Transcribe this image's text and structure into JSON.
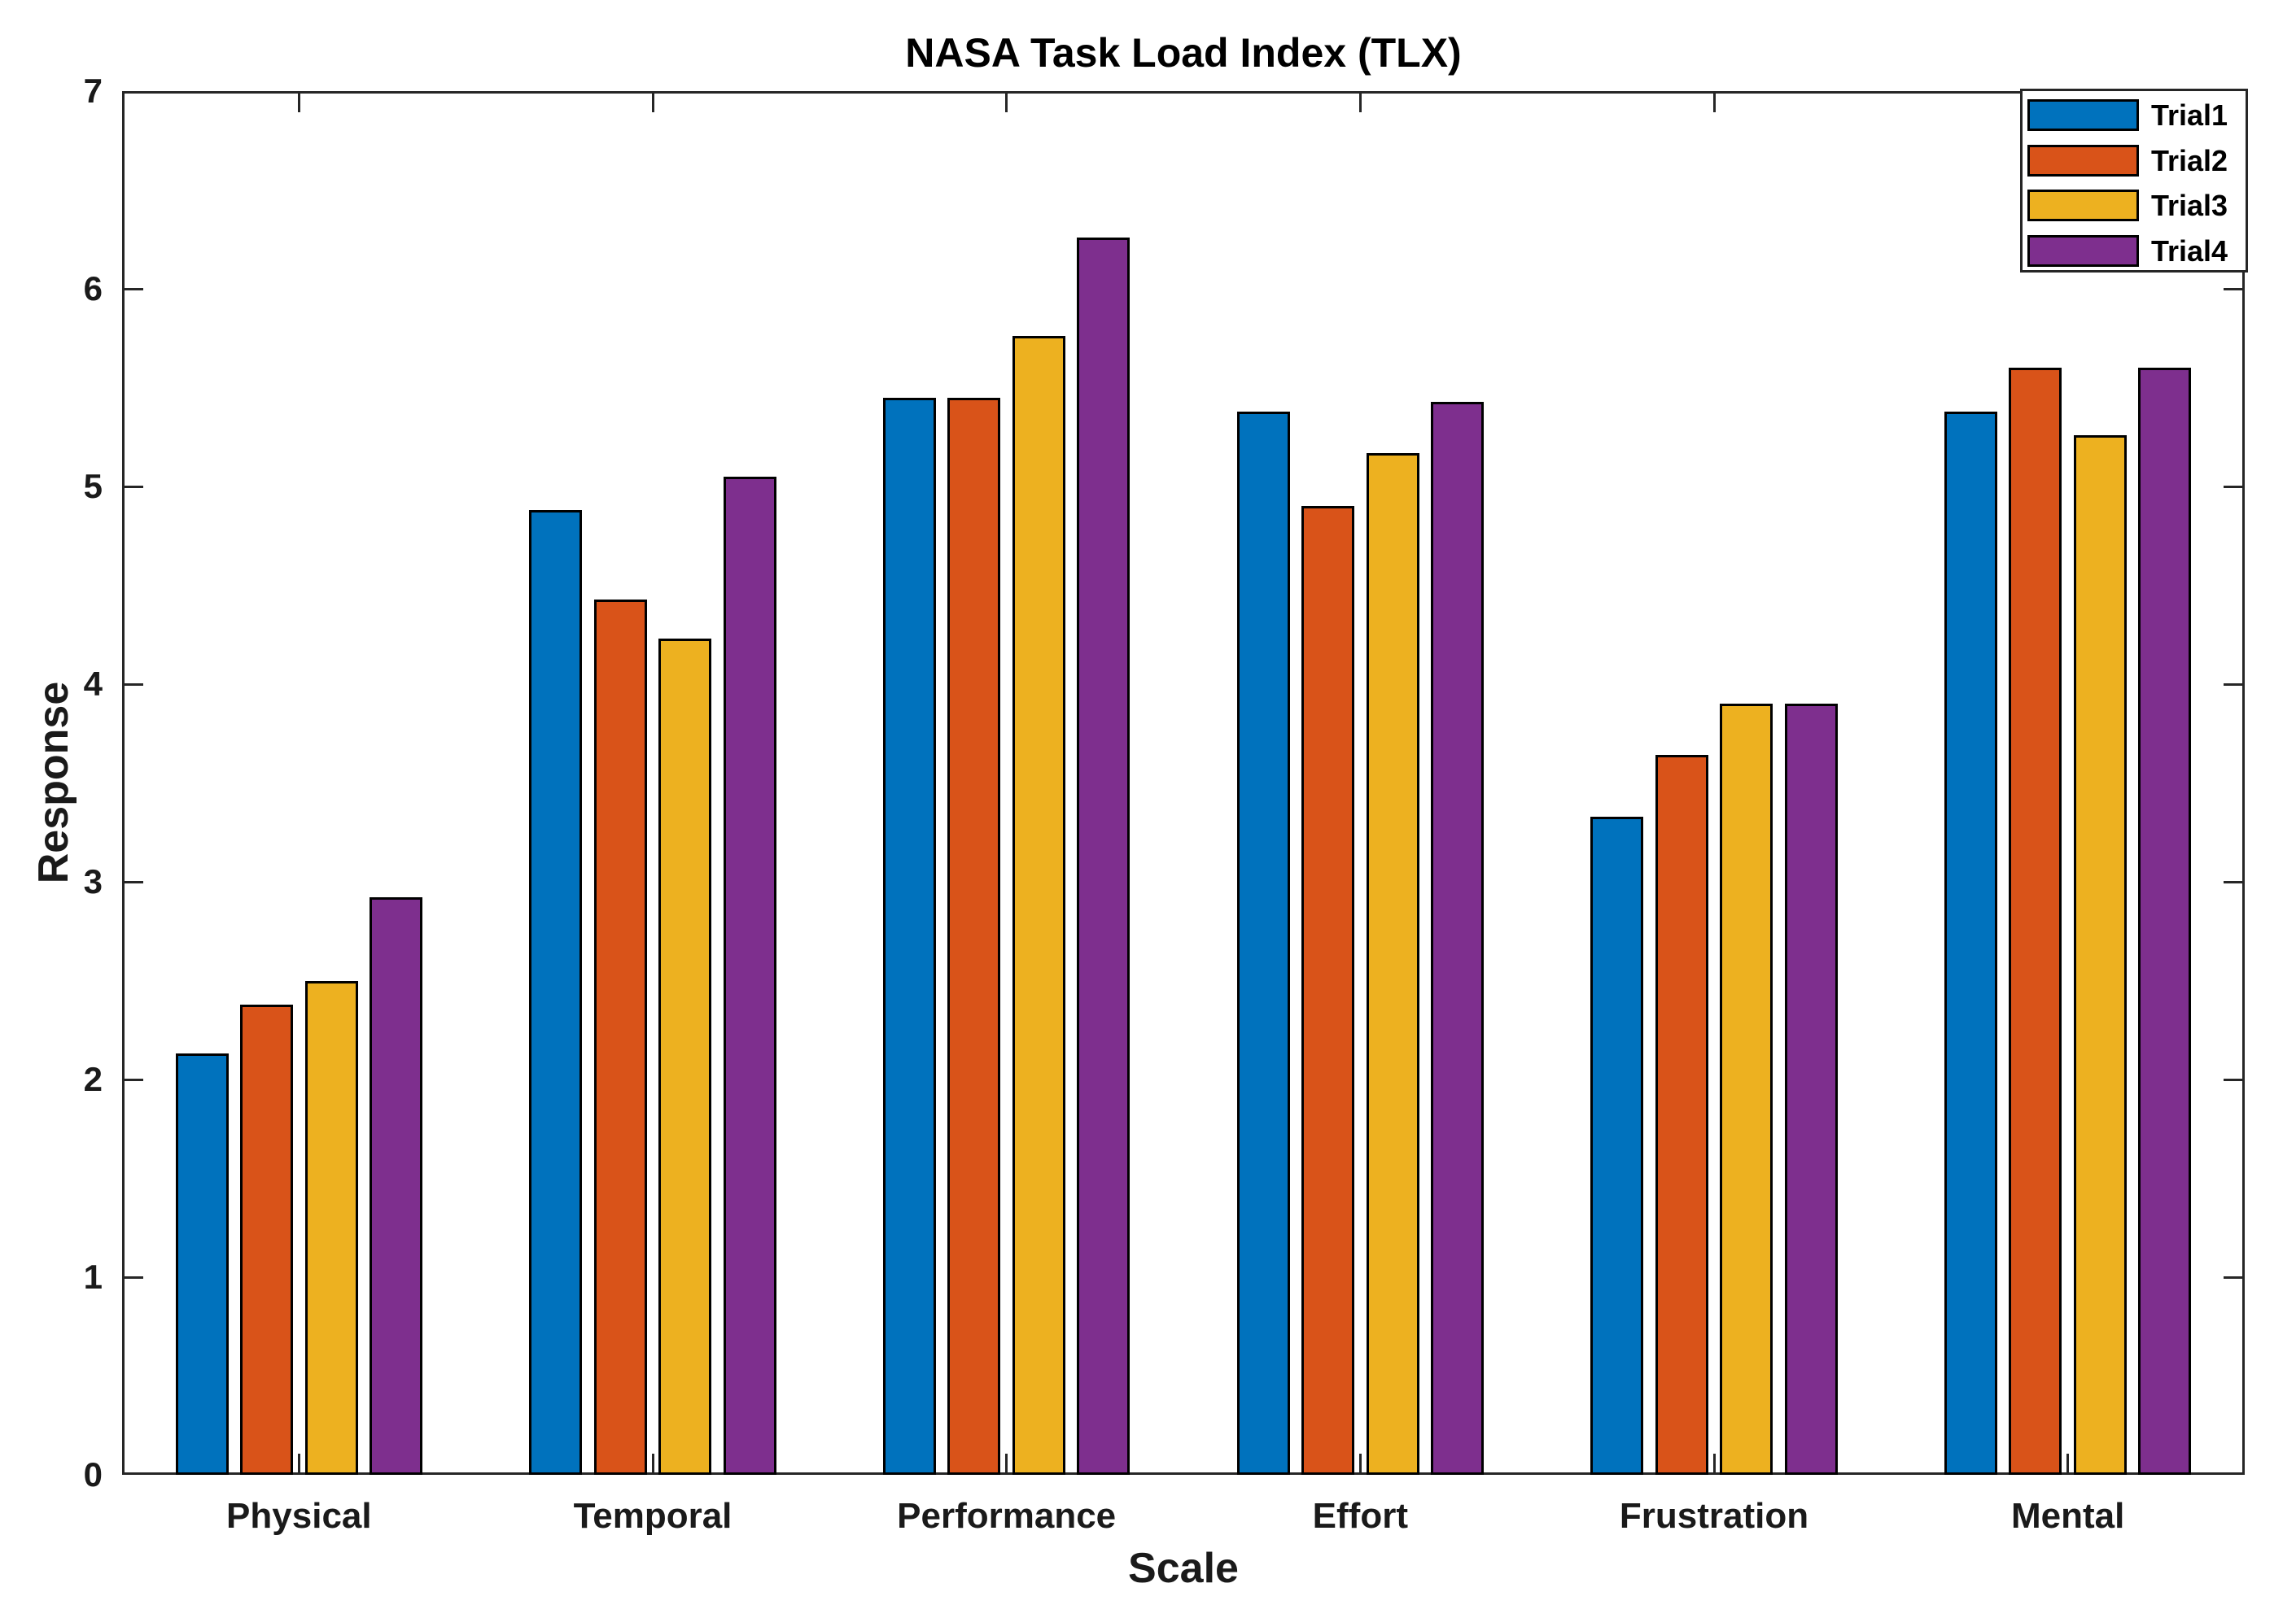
{
  "chart_data": {
    "type": "bar",
    "title": "NASA Task Load Index (TLX)",
    "xlabel": "Scale",
    "ylabel": "Response",
    "ylim": [
      0,
      7
    ],
    "yticks": [
      0,
      1,
      2,
      3,
      4,
      5,
      6,
      7
    ],
    "grid": false,
    "legend_position": "top-right",
    "background_color": "#FFFFFF",
    "axis_color": "#262626",
    "bar_edge_color": "#000000",
    "categories": [
      "Physical",
      "Temporal",
      "Performance",
      "Effort",
      "Frustration",
      "Mental"
    ],
    "series": [
      {
        "name": "Trial1",
        "color": "#0072BD",
        "values": [
          2.13,
          4.88,
          5.45,
          5.38,
          3.33,
          5.38
        ]
      },
      {
        "name": "Trial2",
        "color": "#D95319",
        "values": [
          2.38,
          4.43,
          5.45,
          4.9,
          3.64,
          5.6
        ]
      },
      {
        "name": "Trial3",
        "color": "#EDB120",
        "values": [
          2.5,
          4.23,
          5.76,
          5.17,
          3.9,
          5.26
        ]
      },
      {
        "name": "Trial4",
        "color": "#7E2F8E",
        "values": [
          2.92,
          5.05,
          6.26,
          5.43,
          3.9,
          5.6
        ]
      }
    ]
  }
}
